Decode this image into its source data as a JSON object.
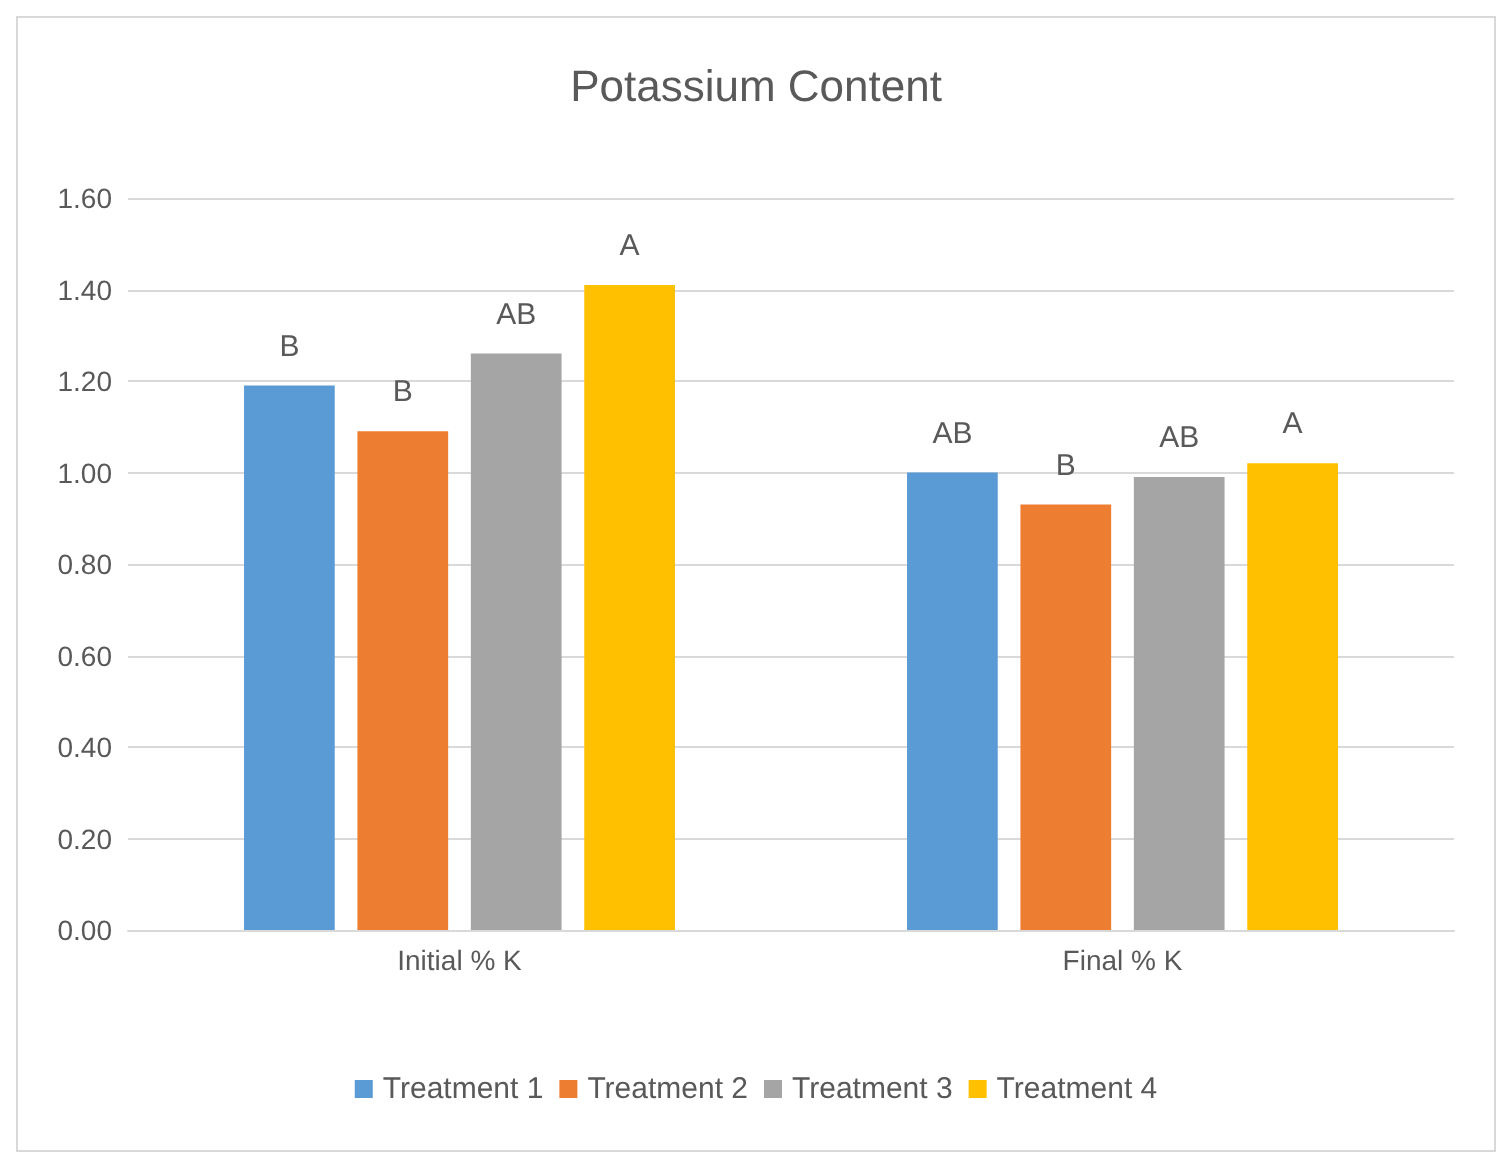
{
  "chart_data": {
    "type": "bar",
    "title": "Potassium Content",
    "categories": [
      "Initial % K",
      "Final % K"
    ],
    "series": [
      {
        "name": "Treatment 1",
        "color": "#5b9bd5",
        "values": [
          1.19,
          1.0
        ],
        "value_labels": [
          "B",
          "AB"
        ]
      },
      {
        "name": "Treatment 2",
        "color": "#ed7d31",
        "values": [
          1.09,
          0.93
        ],
        "value_labels": [
          "B",
          "B"
        ]
      },
      {
        "name": "Treatment 3",
        "color": "#a5a5a5",
        "values": [
          1.26,
          0.99
        ],
        "value_labels": [
          "AB",
          "AB"
        ]
      },
      {
        "name": "Treatment 4",
        "color": "#ffc000",
        "values": [
          1.41,
          1.02
        ],
        "value_labels": [
          "A",
          "A"
        ]
      }
    ],
    "ylim": [
      0,
      1.6
    ],
    "yticks": [
      {
        "value": 0,
        "label": "0.00"
      },
      {
        "value": 0.2,
        "label": "0.20"
      },
      {
        "value": 0.4,
        "label": "0.40"
      },
      {
        "value": 0.6,
        "label": "0.60"
      },
      {
        "value": 0.8,
        "label": "0.80"
      },
      {
        "value": 1.0,
        "label": "1.00"
      },
      {
        "value": 1.2,
        "label": "1.20"
      },
      {
        "value": 1.4,
        "label": "1.40"
      },
      {
        "value": 1.6,
        "label": "1.60"
      }
    ],
    "grid": "y",
    "legend": "bottom"
  }
}
